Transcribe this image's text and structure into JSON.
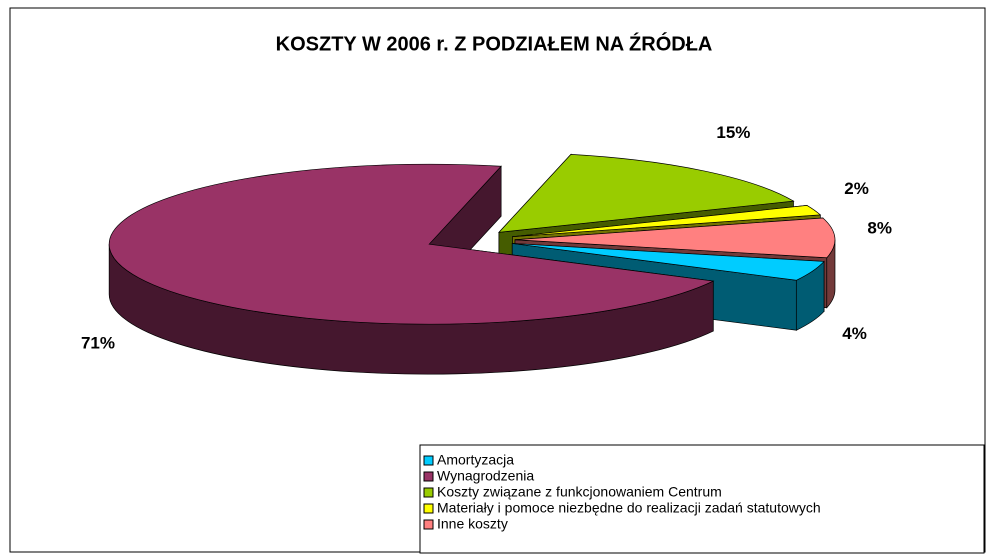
{
  "chart_data": {
    "type": "pie3d",
    "title": "KOSZTY W 2006 r. Z PODZIAŁEM NA ŹRÓDŁA",
    "categories": [
      "Amortyzacja",
      "Wynagrodzenia",
      "Koszty związane z funkcjonowaniem Centrum",
      "Materiały i pomoce niezbędne do realizacji zadań statutowych",
      "Inne koszty"
    ],
    "values": [
      4,
      71,
      15,
      2,
      8
    ],
    "value_labels": [
      "4%",
      "71%",
      "15%",
      "2%",
      "8%"
    ],
    "colors": [
      "#00ccff",
      "#993366",
      "#99cc00",
      "#ffff00",
      "#ff8080"
    ],
    "legend": "bottom-right"
  }
}
